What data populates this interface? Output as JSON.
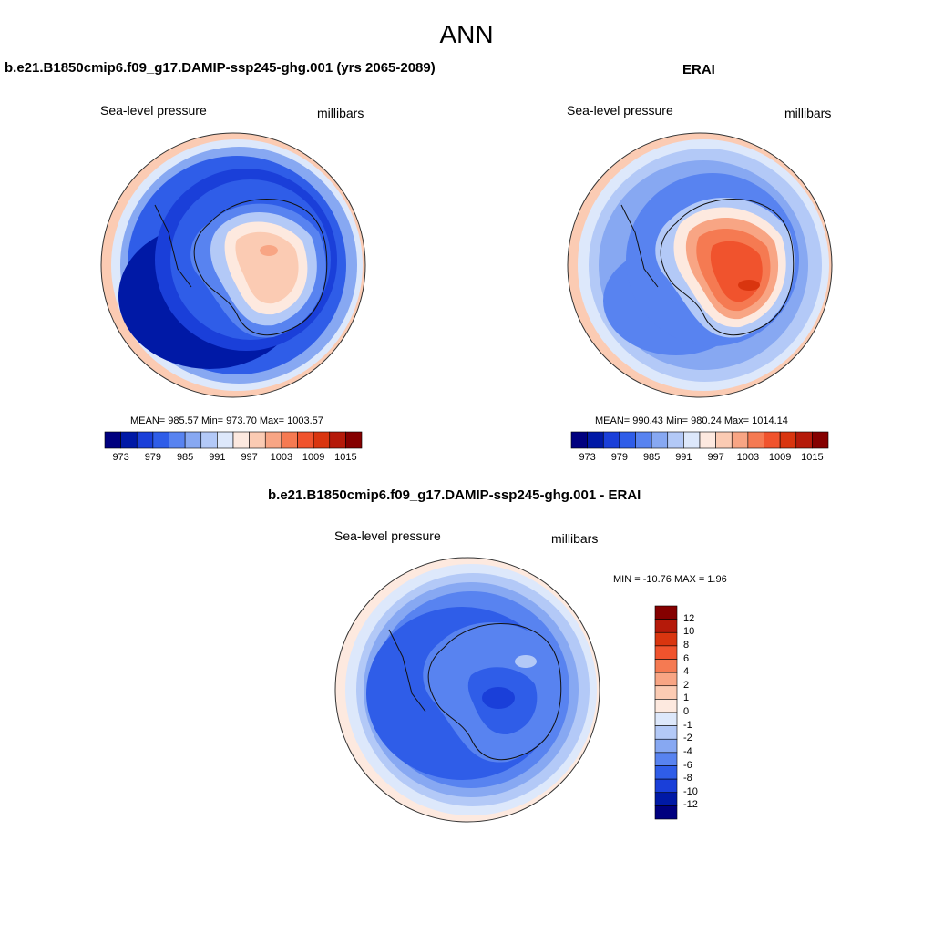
{
  "page": {
    "title": "ANN"
  },
  "panels": [
    {
      "title": "b.e21.B1850cmip6.f09_g17.DAMIP-ssp245-ghg.001 (yrs 2065-2089)",
      "left_label": "Sea-level pressure",
      "right_label": "millibars",
      "stats": "MEAN= 985.57  Min= 973.70  Max= 1003.57",
      "legend_ticks": [
        "973",
        "979",
        "985",
        "991",
        "997",
        "1003",
        "1009",
        "1015"
      ]
    },
    {
      "title": "ERAI",
      "left_label": "Sea-level pressure",
      "right_label": "millibars",
      "stats": "MEAN= 990.43  Min= 980.24  Max= 1014.14",
      "legend_ticks": [
        "973",
        "979",
        "985",
        "991",
        "997",
        "1003",
        "1009",
        "1015"
      ]
    },
    {
      "title": "b.e21.B1850cmip6.f09_g17.DAMIP-ssp245-ghg.001 - ERAI",
      "left_label": "Sea-level pressure",
      "right_label": "millibars",
      "stats": "MIN = -10.76 MAX =   1.96",
      "legend_ticks": [
        "12",
        "10",
        "8",
        "6",
        "4",
        "2",
        "1",
        "0",
        "-1",
        "-2",
        "-4",
        "-6",
        "-8",
        "-10",
        "-12"
      ]
    }
  ],
  "colors": {
    "abs_scale": [
      "#00007f",
      "#0019a6",
      "#1a3fd9",
      "#2f5de8",
      "#5883f0",
      "#87a8f2",
      "#b3c9f7",
      "#dde8fb",
      "#fde9df",
      "#fbcbb3",
      "#f8a584",
      "#f57a52",
      "#f0532d",
      "#d9350f",
      "#b51a0a",
      "#850000"
    ],
    "diff_scale": [
      "#850000",
      "#b51a0a",
      "#d9350f",
      "#f0532d",
      "#f57a52",
      "#f8a584",
      "#fbcbb3",
      "#fde9df",
      "#dde8fb",
      "#b3c9f7",
      "#87a8f2",
      "#5883f0",
      "#2f5de8",
      "#1a3fd9",
      "#0019a6",
      "#00007f"
    ]
  }
}
